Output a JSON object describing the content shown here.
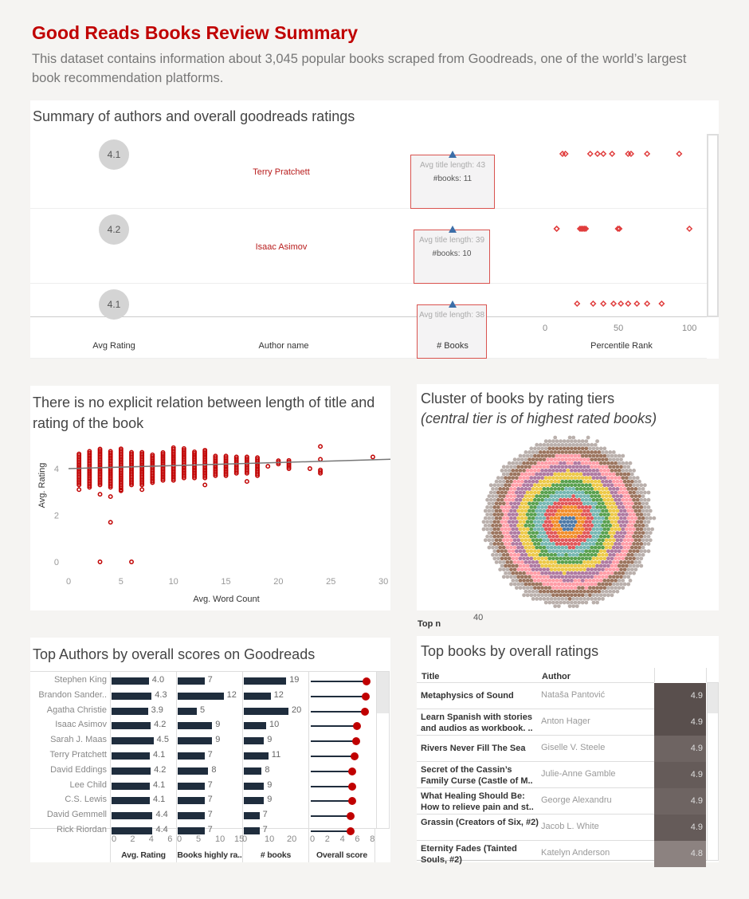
{
  "header": {
    "title": "Good Reads Books Review Summary",
    "subtitle": "This dataset contains information about 3,045 popular books scraped from Goodreads, one of the world’s largest book recommendation platforms."
  },
  "summary": {
    "title": "Summary of authors and overall goodreads ratings",
    "rows": [
      {
        "rating": "4.1",
        "author": "Terry Pratchett",
        "avg_title": "Avg title length: 43",
        "books": "#books: 11",
        "percentiles": [
          12,
          14,
          31,
          36,
          40,
          46,
          57,
          59,
          70,
          92
        ]
      },
      {
        "rating": "4.2",
        "author": "Isaac Asimov",
        "avg_title": "Avg title length: 39",
        "books": "#books: 10",
        "percentiles": [
          8,
          8,
          24,
          25,
          26,
          27,
          28,
          50,
          51,
          99
        ]
      },
      {
        "rating": "4.1",
        "author": "",
        "avg_title": "Avg title length: 38",
        "books": "",
        "percentiles": [
          22,
          33,
          40,
          47,
          52,
          57,
          63,
          70,
          80
        ]
      }
    ],
    "axis_ticks": [
      "0",
      "50",
      "100"
    ],
    "columns": [
      "Avg Rating",
      "Author name",
      "# Books",
      "Percentile Rank"
    ]
  },
  "scatter": {
    "title": "There is no explicit relation between length of title and rating of the book",
    "chart_data": {
      "type": "scatter",
      "xlabel": "Avg. Word Count",
      "ylabel": "Avg. Rating",
      "xlim": [
        0,
        30
      ],
      "ylim": [
        0,
        5
      ],
      "xticks": [
        "0",
        "5",
        "10",
        "15",
        "20",
        "25",
        "30"
      ],
      "yticks": [
        "0",
        "2",
        "4"
      ],
      "trend": [
        [
          0,
          4.0
        ],
        [
          30,
          4.4
        ]
      ],
      "columns": [
        [
          1,
          3.3,
          4.65,
          [
            3.1
          ]
        ],
        [
          2,
          3.2,
          4.8,
          []
        ],
        [
          3,
          3.3,
          4.9,
          [
            2.9,
            0
          ]
        ],
        [
          4,
          3.2,
          4.8,
          [
            2.8,
            1.7
          ]
        ],
        [
          5,
          3.1,
          4.9,
          [
            3.05
          ]
        ],
        [
          6,
          3.3,
          4.75,
          [
            0
          ]
        ],
        [
          7,
          3.3,
          4.75,
          [
            3.1
          ]
        ],
        [
          8,
          3.4,
          4.65,
          []
        ],
        [
          9,
          3.5,
          4.7,
          []
        ],
        [
          10,
          3.5,
          4.9,
          []
        ],
        [
          11,
          3.6,
          4.9,
          []
        ],
        [
          12,
          3.6,
          4.75,
          []
        ],
        [
          13,
          3.6,
          4.8,
          [
            3.3
          ]
        ],
        [
          14,
          3.7,
          4.6,
          []
        ],
        [
          15,
          3.7,
          4.6,
          []
        ],
        [
          16,
          3.8,
          4.5,
          []
        ],
        [
          17,
          3.8,
          4.5,
          [
            3.45
          ]
        ],
        [
          18,
          3.7,
          4.5,
          []
        ],
        [
          19,
          4.1,
          4.1,
          []
        ],
        [
          20,
          4.2,
          4.4,
          []
        ],
        [
          21,
          4.0,
          4.35,
          []
        ],
        [
          23,
          4.0,
          4.0,
          []
        ],
        [
          24,
          3.8,
          4.0,
          [
            4.4,
            4.95
          ]
        ],
        [
          29,
          4.5,
          4.5,
          []
        ]
      ]
    }
  },
  "cluster": {
    "title": "Cluster of books by rating tiers",
    "subtitle": "(central tier is of highest rated books)",
    "top_n_label": "Top n",
    "top_n_value": "40",
    "tier_colors": [
      "#4e79a7",
      "#f28e2b",
      "#e15759",
      "#76b7b2",
      "#59a14f",
      "#edc948",
      "#b07aa1",
      "#ff9da7",
      "#9c755f",
      "#bab0ac"
    ]
  },
  "top_authors": {
    "title": "Top Authors by overall scores on Goodreads",
    "columns": [
      "Avg. Rating",
      "Books highly ra..",
      "# books",
      "Overall score"
    ],
    "ticks": [
      [
        "0",
        "2",
        "4",
        "6"
      ],
      [
        "0",
        "5",
        "10",
        "15"
      ],
      [
        "0",
        "10",
        "20"
      ],
      [
        "0",
        "2",
        "4",
        "6",
        "8"
      ]
    ],
    "rows": [
      {
        "name": "Stephen  King",
        "rating": "4.0",
        "high": "7",
        "books": "19",
        "score": 7.5
      },
      {
        "name": "Brandon Sander..",
        "rating": "4.3",
        "high": "12",
        "books": "12",
        "score": 7.4
      },
      {
        "name": "Agatha Christie",
        "rating": "3.9",
        "high": "5",
        "books": "20",
        "score": 7.3
      },
      {
        "name": "Isaac Asimov",
        "rating": "4.2",
        "high": "9",
        "books": "10",
        "score": 6.3
      },
      {
        "name": "Sarah J. Maas",
        "rating": "4.5",
        "high": "9",
        "books": "9",
        "score": 6.2
      },
      {
        "name": "Terry Pratchett",
        "rating": "4.1",
        "high": "7",
        "books": "11",
        "score": 6.0
      },
      {
        "name": "David Eddings",
        "rating": "4.2",
        "high": "8",
        "books": "8",
        "score": 5.6
      },
      {
        "name": "Lee Child",
        "rating": "4.1",
        "high": "7",
        "books": "9",
        "score": 5.6
      },
      {
        "name": "C.S. Lewis",
        "rating": "4.1",
        "high": "7",
        "books": "9",
        "score": 5.6
      },
      {
        "name": "David Gemmell",
        "rating": "4.4",
        "high": "7",
        "books": "7",
        "score": 5.4
      },
      {
        "name": "Rick Riordan",
        "rating": "4.4",
        "high": "7",
        "books": "7",
        "score": 5.4
      }
    ]
  },
  "top_books": {
    "title": "Top books by overall ratings",
    "columns": [
      "Title",
      "Author"
    ],
    "rows": [
      {
        "title": "Metaphysics of Sound",
        "author": "Nataša Pantović",
        "rating": "4.9",
        "color": "#594f4d"
      },
      {
        "title": "Learn Spanish with stories and audios as workbook. ..",
        "author": "Anton Hager",
        "rating": "4.9",
        "color": "#594f4d"
      },
      {
        "title": "Rivers Never Fill The Sea",
        "author": "Giselle V. Steele",
        "rating": "4.9",
        "color": "#6e6462"
      },
      {
        "title": "Secret of the Cassin’s Family Curse (Castle of M..",
        "author": "Julie-Anne Gamble",
        "rating": "4.9",
        "color": "#655b59"
      },
      {
        "title": "What Healing Should Be: How to relieve pain and st..",
        "author": "George  Alexandru",
        "rating": "4.9",
        "color": "#6e6462"
      },
      {
        "title": "Grassin (Creators of Six, #2)",
        "author": "Jacob L. White",
        "rating": "4.9",
        "color": "#655b59"
      },
      {
        "title": "Eternity Fades (Tainted Souls, #2)",
        "author": "Katelyn Anderson",
        "rating": "4.8",
        "color": "#8c8280"
      }
    ]
  }
}
